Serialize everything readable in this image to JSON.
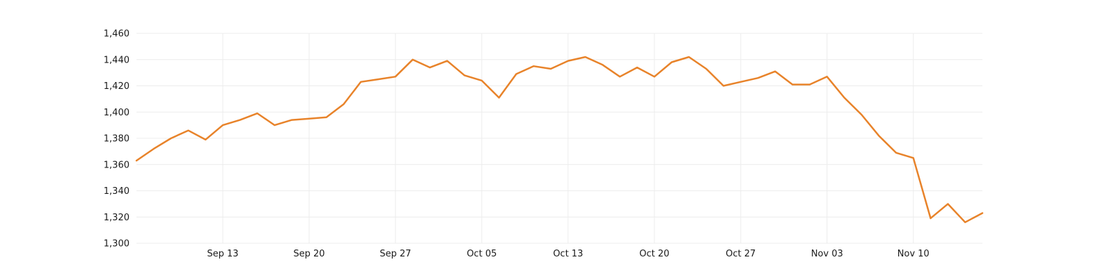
{
  "chart_data": {
    "type": "line",
    "title": "",
    "xlabel": "",
    "ylabel": "",
    "ylim": [
      1300,
      1460
    ],
    "y_ticks": [
      "1,300",
      "1,320",
      "1,340",
      "1,360",
      "1,380",
      "1,400",
      "1,420",
      "1,440",
      "1,460"
    ],
    "y_tick_values": [
      1300,
      1320,
      1340,
      1360,
      1380,
      1400,
      1420,
      1440,
      1460
    ],
    "x_ticks": [
      "Sep 13",
      "Sep 20",
      "Sep 27",
      "Oct 05",
      "Oct 13",
      "Oct 20",
      "Oct 27",
      "Nov 03",
      "Nov 10"
    ],
    "x_tick_positions": [
      5,
      10,
      15,
      20,
      25,
      30,
      35,
      40,
      45
    ],
    "x_count": 50,
    "grid": true,
    "legend": "none",
    "series": [
      {
        "color": "#e8832a",
        "values": [
          1363,
          1372,
          1380,
          1386,
          1379,
          1390,
          1394,
          1399,
          1390,
          1394,
          1395,
          1396,
          1406,
          1423,
          1425,
          1427,
          1440,
          1434,
          1439,
          1428,
          1424,
          1411,
          1429,
          1435,
          1433,
          1439,
          1442,
          1436,
          1427,
          1434,
          1427,
          1438,
          1442,
          1433,
          1420,
          1423,
          1426,
          1431,
          1421,
          1421,
          1427,
          1411,
          1398,
          1382,
          1369,
          1365,
          1319,
          1330,
          1316,
          1323
        ]
      }
    ]
  }
}
